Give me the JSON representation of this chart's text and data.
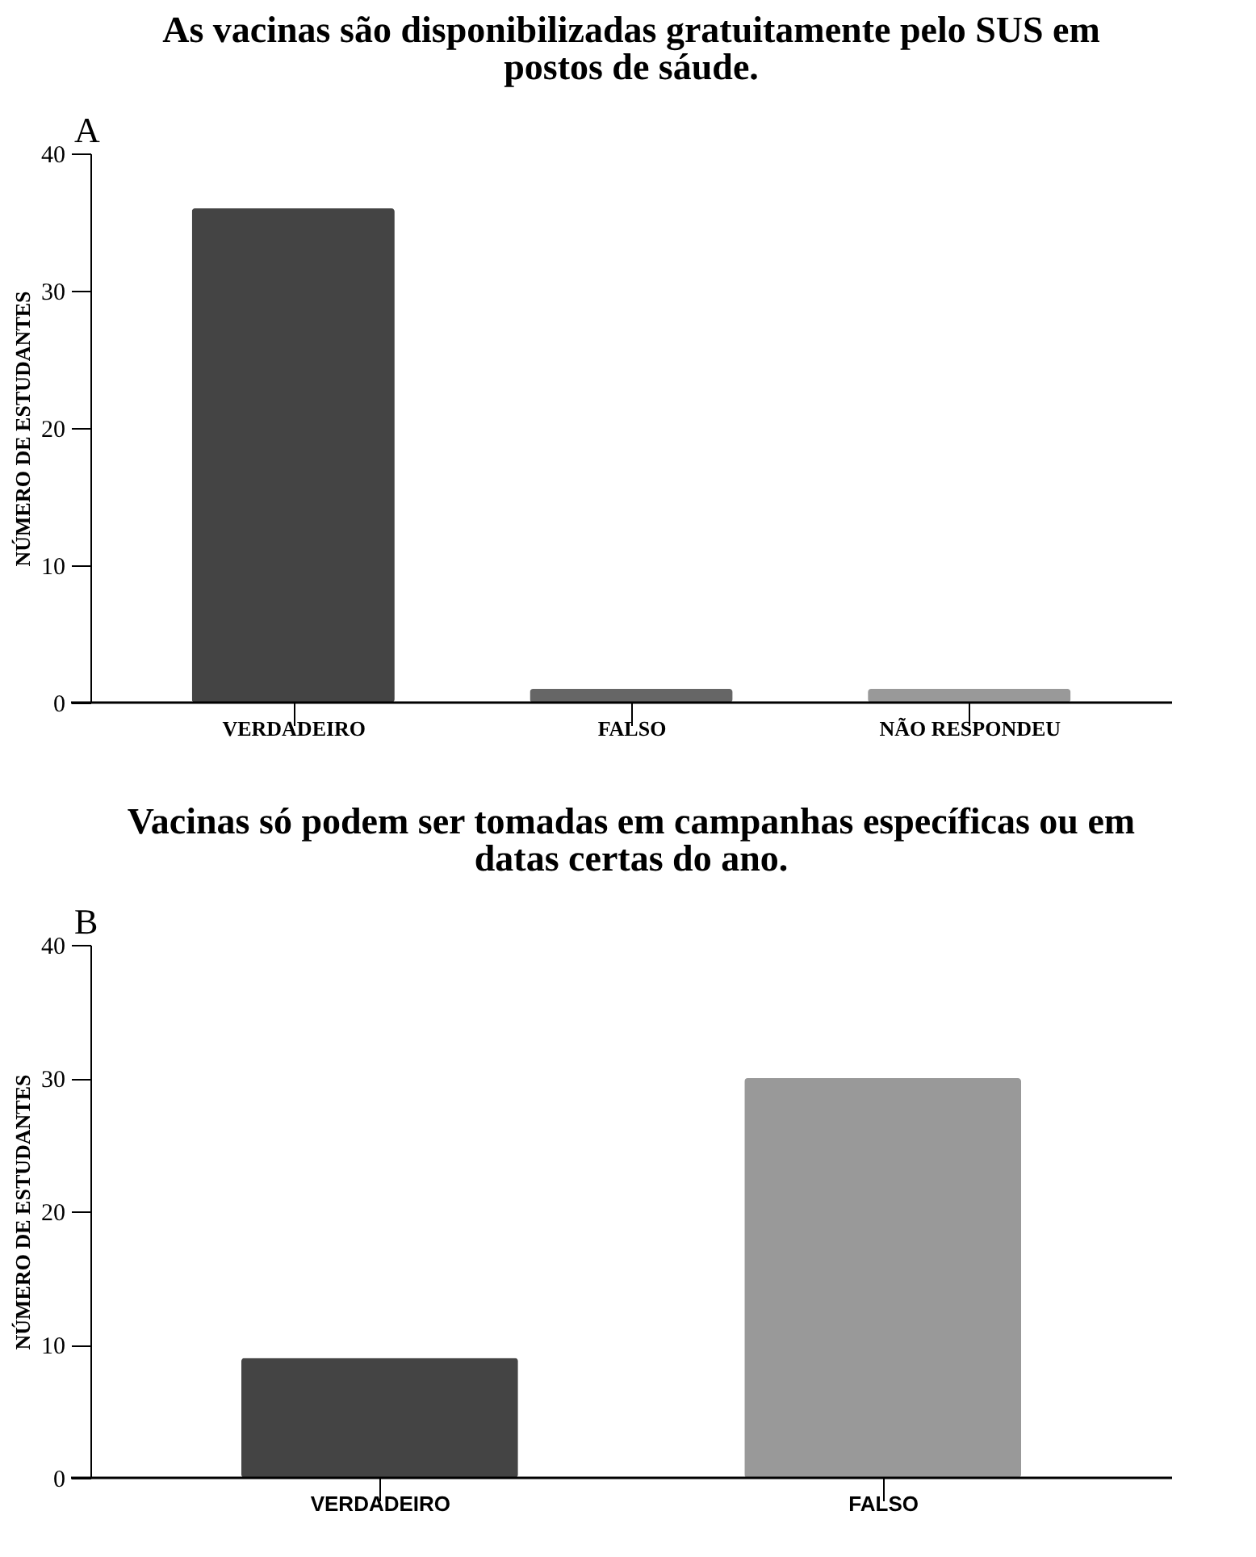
{
  "chart_data": [
    {
      "type": "bar",
      "title": "As vacinas são disponibilizadas gratuitamente pelo SUS em postos de sáude.",
      "annotations": [
        "A"
      ],
      "ylabel": "NÚMERO DE ESTUDANTES",
      "categories": [
        "VERDADEIRO",
        "FALSO",
        "NÃO RESPONDEU"
      ],
      "values": [
        36,
        1,
        1
      ],
      "colors": [
        "#444444",
        "#666666",
        "#999999"
      ],
      "ylim": [
        0,
        40
      ],
      "yticks": [
        0,
        10,
        20,
        30,
        40
      ]
    },
    {
      "type": "bar",
      "title": "Vacinas só podem ser tomadas em campanhas específicas ou em datas certas do ano.",
      "annotations": [
        "B"
      ],
      "ylabel": "NÚMERO DE ESTUDANTES",
      "categories": [
        "VERDADEIRO",
        "FALSO"
      ],
      "values": [
        9,
        30
      ],
      "colors": [
        "#444444",
        "#999999"
      ],
      "ylim": [
        0,
        40
      ],
      "yticks": [
        0,
        10,
        20,
        30,
        40
      ]
    }
  ]
}
